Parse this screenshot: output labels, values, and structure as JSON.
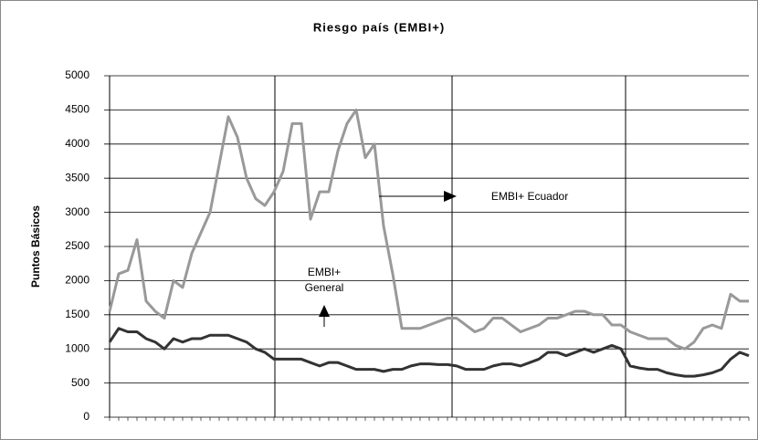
{
  "chart_data": {
    "type": "line",
    "title": "Riesgo país (EMBI+)",
    "y_label": "Puntos Básicos",
    "categories": [
      null,
      null,
      null,
      null,
      null,
      null,
      null,
      null,
      null,
      null,
      null,
      null,
      null,
      null,
      null,
      null,
      null,
      null,
      null,
      null,
      null,
      null,
      null,
      null,
      null,
      null,
      null,
      null,
      null,
      null,
      null,
      null,
      null,
      null,
      null,
      null,
      null,
      null,
      null,
      null,
      null,
      null,
      null,
      null,
      null,
      null,
      null,
      null,
      null,
      null,
      null,
      null,
      null,
      null,
      null,
      null,
      null,
      null,
      null,
      null,
      null,
      null,
      null,
      null,
      null,
      null,
      null,
      null,
      null,
      null,
      null
    ],
    "series": [
      {
        "name": "EMBI+ Ecuador",
        "color": "#999999",
        "values": [
          1550,
          2100,
          2150,
          2600,
          1700,
          1550,
          1450,
          2000,
          1900,
          2400,
          2700,
          3000,
          3700,
          4400,
          4100,
          3500,
          3200,
          3100,
          3300,
          3600,
          4300,
          4300,
          2900,
          3300,
          3300,
          3900,
          4300,
          4500,
          3800,
          4000,
          2800,
          2100,
          1300,
          1300,
          1300,
          1350,
          1400,
          1450,
          1450,
          1350,
          1250,
          1300,
          1450,
          1450,
          1350,
          1250,
          1300,
          1350,
          1450,
          1450,
          1500,
          1550,
          1550,
          1500,
          1500,
          1350,
          1350,
          1250,
          1200,
          1150,
          1150,
          1150,
          1050,
          1000,
          1100,
          1300,
          1350,
          1300,
          1800,
          1700,
          1700
        ]
      },
      {
        "name": "EMBI+ General",
        "color": "#333333",
        "values": [
          1100,
          1300,
          1250,
          1250,
          1150,
          1100,
          1000,
          1150,
          1100,
          1150,
          1150,
          1200,
          1200,
          1200,
          1150,
          1100,
          1000,
          950,
          850,
          850,
          850,
          850,
          800,
          750,
          800,
          800,
          750,
          700,
          700,
          700,
          670,
          700,
          700,
          750,
          780,
          780,
          770,
          770,
          750,
          700,
          700,
          700,
          750,
          780,
          780,
          750,
          800,
          850,
          950,
          950,
          900,
          950,
          1000,
          950,
          1000,
          1050,
          1000,
          750,
          720,
          700,
          700,
          650,
          620,
          600,
          600,
          620,
          650,
          700,
          850,
          950,
          900
        ]
      }
    ],
    "annotations": [
      "EMBI+ Ecuador",
      "EMBI+",
      "General"
    ],
    "ylim": [
      0,
      5000
    ],
    "yticks": [
      0,
      500,
      1000,
      1500,
      2000,
      2500,
      3000,
      3500,
      4000,
      4500,
      5000
    ],
    "grid": true
  }
}
